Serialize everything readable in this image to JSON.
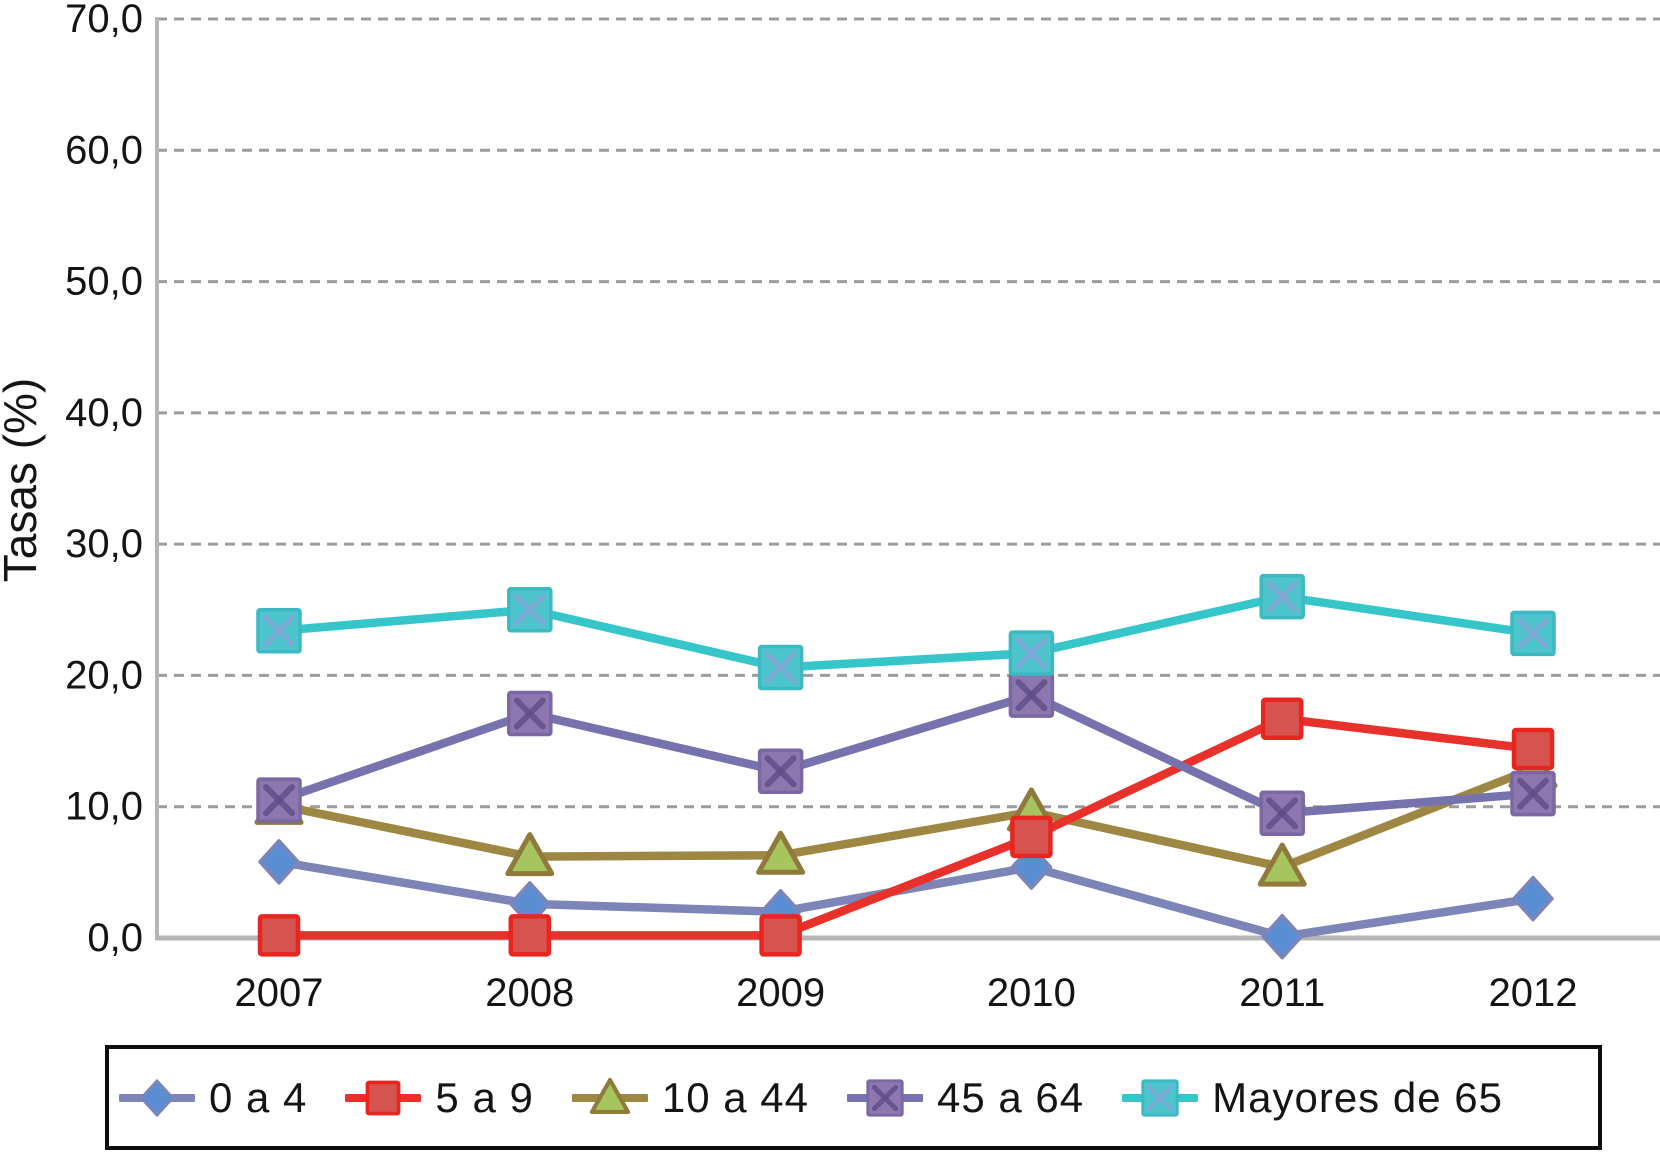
{
  "chart_data": {
    "type": "line",
    "title": "",
    "xlabel": "",
    "ylabel": "Tasas (%)",
    "ylim": [
      0,
      70
    ],
    "y_tick_step": 10,
    "y_ticks": [
      "0,0",
      "10,0",
      "20,0",
      "30,0",
      "40,0",
      "50,0",
      "60,0",
      "70,0"
    ],
    "categories": [
      "2007",
      "2008",
      "2009",
      "2010",
      "2011",
      "2012"
    ],
    "grid": "horizontal-dashed",
    "legend_position": "bottom",
    "series": [
      {
        "name": "0 a 4",
        "marker": "diamond",
        "line_color": "#7c84b8",
        "marker_fill": "#5a8ed2",
        "marker_stroke": "#7c84b8",
        "values": [
          5.8,
          2.6,
          2.0,
          5.4,
          0.1,
          3.0
        ]
      },
      {
        "name": "5 a 9",
        "marker": "square",
        "line_color": "#e9312b",
        "marker_fill": "#d6544f",
        "marker_stroke": "#e9251f",
        "values": [
          0.2,
          0.2,
          0.2,
          7.7,
          16.7,
          14.4
        ]
      },
      {
        "name": "10 a 44",
        "marker": "triangle",
        "line_color": "#9e8743",
        "marker_fill": "#a6c55f",
        "marker_stroke": "#8f7a3b",
        "values": [
          10.1,
          6.2,
          6.3,
          9.6,
          5.4,
          12.9
        ]
      },
      {
        "name": "45 a 64",
        "marker": "square-x",
        "line_color": "#7672ae",
        "marker_fill": "#8d77b0",
        "marker_stroke": "#7a68a2",
        "marker_cross": "#5e4d87",
        "values": [
          10.5,
          17.1,
          12.7,
          18.5,
          9.5,
          11.0
        ]
      },
      {
        "name": "Mayores de 65",
        "marker": "square-x",
        "line_color": "#36c6ca",
        "marker_fill": "#4cc5cd",
        "marker_stroke": "#3cb9c2",
        "marker_cross": "#82a6d6",
        "values": [
          23.4,
          25.0,
          20.6,
          21.7,
          26.0,
          23.2
        ]
      }
    ],
    "axis_color": "#b5b5b5",
    "grid_color": "#9c9c9c",
    "text_color": "#141414"
  }
}
